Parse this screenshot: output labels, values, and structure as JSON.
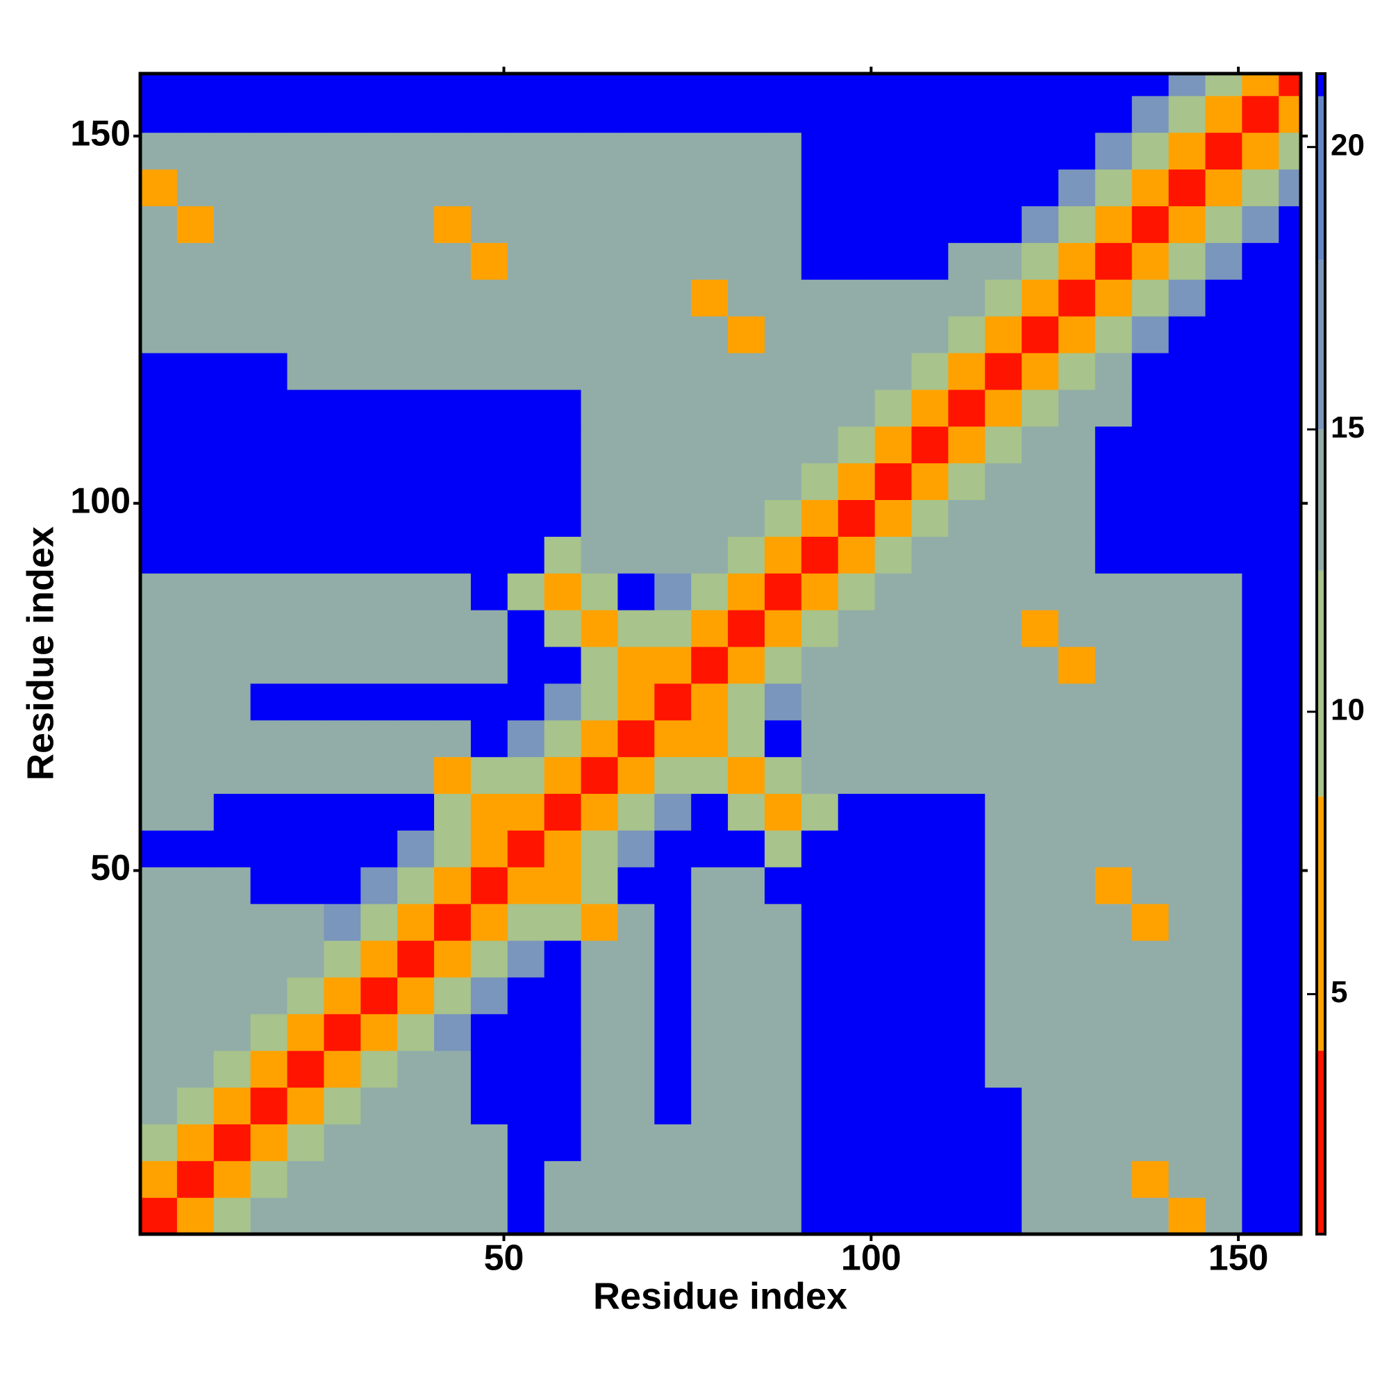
{
  "chart_data": {
    "type": "heatmap",
    "xlabel": "Residue index",
    "ylabel": "Residue index",
    "x": [
      3,
      8,
      13,
      18,
      23,
      28,
      33,
      38,
      43,
      48,
      53,
      58,
      63,
      68,
      73,
      78,
      83,
      88,
      93,
      98,
      103,
      108,
      113,
      118,
      123,
      128,
      133,
      138,
      143,
      148,
      153,
      158
    ],
    "y": [
      3,
      8,
      13,
      18,
      23,
      28,
      33,
      38,
      43,
      48,
      53,
      58,
      63,
      68,
      73,
      78,
      83,
      88,
      93,
      98,
      103,
      108,
      113,
      118,
      123,
      128,
      133,
      138,
      143,
      148,
      153,
      158
    ],
    "xlim": [
      0.5,
      158.5
    ],
    "ylim": [
      0.5,
      158.5
    ],
    "xticks": [
      50,
      100,
      150
    ],
    "yticks": [
      50,
      100,
      150
    ],
    "colorbar": {
      "lim": [
        0.75,
        21.3
      ],
      "ticks": [
        5,
        10,
        15,
        20
      ]
    },
    "colorscale": [
      {
        "max": 4,
        "color": "#ff1400"
      },
      {
        "max": 8.5,
        "color": "#ffa200"
      },
      {
        "max": 12.5,
        "color": "#a8c38b"
      },
      {
        "max": 15,
        "color": "#92ada8"
      },
      {
        "max": 18,
        "color": "#7a96bc"
      },
      {
        "max": 20.9,
        "color": "#6386c6"
      },
      {
        "max": 21.3,
        "color": "#0000f8"
      }
    ],
    "values": [
      [
        3,
        7,
        12,
        14,
        14,
        14,
        14,
        14,
        14,
        14,
        21,
        15,
        15,
        15,
        15,
        15,
        15,
        15,
        21,
        21,
        21,
        21,
        21,
        21,
        13,
        13,
        13,
        13,
        6,
        13,
        21,
        21
      ],
      [
        7,
        3,
        7,
        12,
        14,
        14,
        14,
        14,
        14,
        14,
        21,
        15,
        15,
        15,
        15,
        15,
        15,
        15,
        21,
        21,
        21,
        21,
        21,
        21,
        13,
        13,
        13,
        6,
        13,
        13,
        21,
        21
      ],
      [
        12,
        7,
        3,
        7,
        12,
        14,
        14,
        14,
        14,
        14,
        21,
        21,
        15,
        15,
        15,
        15,
        15,
        15,
        21,
        21,
        21,
        21,
        21,
        21,
        13,
        13,
        13,
        13,
        13,
        13,
        21,
        21
      ],
      [
        14,
        12,
        7,
        3,
        7,
        12,
        14,
        14,
        14,
        21,
        21,
        21,
        13,
        13,
        21,
        14,
        14,
        14,
        21,
        21,
        21,
        21,
        21,
        21,
        13,
        13,
        13,
        13,
        13,
        13,
        21,
        21
      ],
      [
        14,
        14,
        12,
        7,
        3,
        7,
        12,
        14,
        14,
        21,
        21,
        21,
        13,
        13,
        21,
        14,
        14,
        14,
        21,
        21,
        21,
        21,
        21,
        13,
        13,
        13,
        13,
        13,
        13,
        13,
        21,
        21
      ],
      [
        14,
        14,
        14,
        12,
        7,
        3,
        7,
        12,
        16,
        21,
        21,
        21,
        13,
        13,
        21,
        14,
        14,
        14,
        21,
        21,
        21,
        21,
        21,
        13,
        13,
        13,
        13,
        13,
        13,
        13,
        21,
        21
      ],
      [
        14,
        14,
        14,
        14,
        12,
        7,
        3,
        7,
        12,
        16,
        21,
        21,
        13,
        13,
        21,
        14,
        14,
        14,
        21,
        21,
        21,
        21,
        21,
        13,
        13,
        13,
        13,
        13,
        13,
        13,
        21,
        21
      ],
      [
        14,
        14,
        14,
        14,
        14,
        12,
        7,
        3,
        7,
        12,
        16,
        21,
        13,
        13,
        21,
        14,
        14,
        14,
        21,
        21,
        21,
        21,
        21,
        13,
        13,
        13,
        13,
        13,
        13,
        13,
        21,
        21
      ],
      [
        14,
        14,
        14,
        14,
        14,
        16,
        12,
        7,
        3,
        7,
        12,
        9,
        6,
        13,
        21,
        14,
        14,
        14,
        21,
        21,
        21,
        21,
        21,
        13,
        13,
        13,
        13,
        6,
        13,
        13,
        21,
        21
      ],
      [
        14,
        14,
        14,
        21,
        21,
        21,
        16,
        12,
        7,
        3,
        7,
        6,
        10,
        21,
        21,
        15,
        15,
        21,
        21,
        21,
        21,
        21,
        21,
        13,
        13,
        13,
        6,
        13,
        13,
        13,
        21,
        21
      ],
      [
        21,
        21,
        21,
        21,
        21,
        21,
        21,
        16,
        12,
        7,
        3,
        7,
        12,
        16,
        21,
        21,
        21,
        11,
        21,
        21,
        21,
        21,
        21,
        13,
        13,
        13,
        13,
        13,
        13,
        13,
        21,
        21
      ],
      [
        15,
        15,
        21,
        21,
        21,
        21,
        21,
        21,
        9,
        6,
        7,
        3,
        7,
        12,
        16,
        21,
        11,
        6,
        11,
        21,
        21,
        21,
        21,
        13,
        13,
        13,
        13,
        13,
        13,
        13,
        21,
        21
      ],
      [
        15,
        15,
        15,
        13,
        13,
        13,
        13,
        13,
        6,
        10,
        12,
        7,
        3,
        7,
        12,
        11,
        6,
        11,
        13,
        13,
        13,
        13,
        13,
        13,
        13,
        13,
        14,
        14,
        14,
        14,
        21,
        21
      ],
      [
        15,
        15,
        15,
        13,
        13,
        13,
        13,
        13,
        13,
        21,
        16,
        12,
        7,
        3,
        7,
        6,
        11,
        21,
        13,
        13,
        13,
        13,
        13,
        13,
        13,
        13,
        14,
        14,
        14,
        14,
        21,
        21
      ],
      [
        15,
        15,
        15,
        21,
        21,
        21,
        21,
        21,
        21,
        21,
        21,
        16,
        12,
        7,
        3,
        7,
        12,
        16,
        13,
        13,
        13,
        13,
        13,
        13,
        13,
        13,
        14,
        14,
        14,
        14,
        21,
        21
      ],
      [
        15,
        15,
        15,
        14,
        14,
        14,
        14,
        14,
        14,
        15,
        21,
        21,
        11,
        6,
        7,
        3,
        7,
        12,
        13,
        13,
        13,
        13,
        13,
        13,
        13,
        6,
        13,
        13,
        14,
        14,
        21,
        21
      ],
      [
        15,
        15,
        15,
        14,
        14,
        14,
        14,
        14,
        14,
        15,
        21,
        11,
        6,
        11,
        12,
        7,
        3,
        7,
        12,
        13,
        13,
        13,
        13,
        13,
        6,
        13,
        13,
        13,
        14,
        14,
        21,
        21
      ],
      [
        15,
        15,
        15,
        14,
        14,
        14,
        14,
        14,
        14,
        21,
        11,
        6,
        11,
        21,
        16,
        12,
        7,
        3,
        7,
        12,
        13,
        13,
        13,
        13,
        13,
        13,
        13,
        13,
        14,
        14,
        21,
        21
      ],
      [
        21,
        21,
        21,
        21,
        21,
        21,
        21,
        21,
        21,
        21,
        21,
        11,
        13,
        13,
        13,
        13,
        12,
        7,
        3,
        7,
        12,
        13,
        13,
        13,
        13,
        13,
        21,
        21,
        21,
        21,
        21,
        21
      ],
      [
        21,
        21,
        21,
        21,
        21,
        21,
        21,
        21,
        21,
        21,
        21,
        21,
        13,
        13,
        13,
        13,
        13,
        12,
        7,
        3,
        7,
        12,
        13,
        13,
        13,
        13,
        21,
        21,
        21,
        21,
        21,
        21
      ],
      [
        21,
        21,
        21,
        21,
        21,
        21,
        21,
        21,
        21,
        21,
        21,
        21,
        13,
        13,
        13,
        13,
        13,
        13,
        12,
        7,
        3,
        7,
        12,
        13,
        13,
        13,
        21,
        21,
        21,
        21,
        21,
        21
      ],
      [
        21,
        21,
        21,
        21,
        21,
        21,
        21,
        21,
        21,
        21,
        21,
        21,
        13,
        13,
        13,
        13,
        13,
        13,
        13,
        12,
        7,
        3,
        7,
        12,
        13,
        13,
        21,
        21,
        21,
        21,
        21,
        21
      ],
      [
        21,
        21,
        21,
        21,
        21,
        21,
        21,
        21,
        21,
        21,
        21,
        21,
        13,
        13,
        13,
        13,
        13,
        13,
        13,
        13,
        12,
        7,
        3,
        7,
        12,
        13,
        13,
        21,
        21,
        21,
        21,
        21
      ],
      [
        21,
        21,
        21,
        21,
        13,
        13,
        13,
        13,
        13,
        13,
        13,
        13,
        13,
        13,
        13,
        13,
        13,
        13,
        13,
        13,
        13,
        12,
        7,
        3,
        7,
        12,
        13,
        21,
        21,
        21,
        21,
        21
      ],
      [
        13,
        13,
        13,
        13,
        13,
        13,
        13,
        13,
        13,
        13,
        13,
        13,
        13,
        13,
        13,
        13,
        6,
        13,
        13,
        13,
        13,
        13,
        12,
        7,
        3,
        7,
        12,
        16,
        21,
        21,
        21,
        21
      ],
      [
        13,
        13,
        13,
        13,
        13,
        13,
        13,
        13,
        13,
        13,
        13,
        13,
        13,
        13,
        13,
        6,
        13,
        13,
        13,
        13,
        13,
        13,
        13,
        12,
        7,
        3,
        7,
        12,
        16,
        21,
        21,
        21
      ],
      [
        13,
        13,
        13,
        13,
        13,
        13,
        13,
        13,
        13,
        6,
        13,
        13,
        14,
        14,
        14,
        13,
        13,
        13,
        21,
        21,
        21,
        21,
        13,
        13,
        12,
        7,
        3,
        7,
        12,
        16,
        21,
        21
      ],
      [
        13,
        6,
        13,
        13,
        13,
        13,
        13,
        13,
        6,
        13,
        13,
        13,
        14,
        14,
        14,
        13,
        13,
        13,
        21,
        21,
        21,
        21,
        21,
        21,
        16,
        12,
        7,
        3,
        7,
        12,
        16,
        21
      ],
      [
        6,
        13,
        13,
        13,
        13,
        13,
        13,
        13,
        13,
        13,
        13,
        13,
        14,
        14,
        14,
        14,
        14,
        14,
        21,
        21,
        21,
        21,
        21,
        21,
        21,
        16,
        12,
        7,
        3,
        7,
        12,
        16
      ],
      [
        13,
        13,
        13,
        13,
        13,
        13,
        13,
        13,
        13,
        13,
        13,
        13,
        14,
        14,
        14,
        14,
        14,
        14,
        21,
        21,
        21,
        21,
        21,
        21,
        21,
        21,
        16,
        12,
        7,
        3,
        7,
        12
      ],
      [
        21,
        21,
        21,
        21,
        21,
        21,
        21,
        21,
        21,
        21,
        21,
        21,
        21,
        21,
        21,
        21,
        21,
        21,
        21,
        21,
        21,
        21,
        21,
        21,
        21,
        21,
        21,
        16,
        12,
        7,
        3,
        7
      ],
      [
        21,
        21,
        21,
        21,
        21,
        21,
        21,
        21,
        21,
        21,
        21,
        21,
        21,
        21,
        21,
        21,
        21,
        21,
        21,
        21,
        21,
        21,
        21,
        21,
        21,
        21,
        21,
        21,
        16,
        12,
        7,
        3
      ]
    ]
  }
}
